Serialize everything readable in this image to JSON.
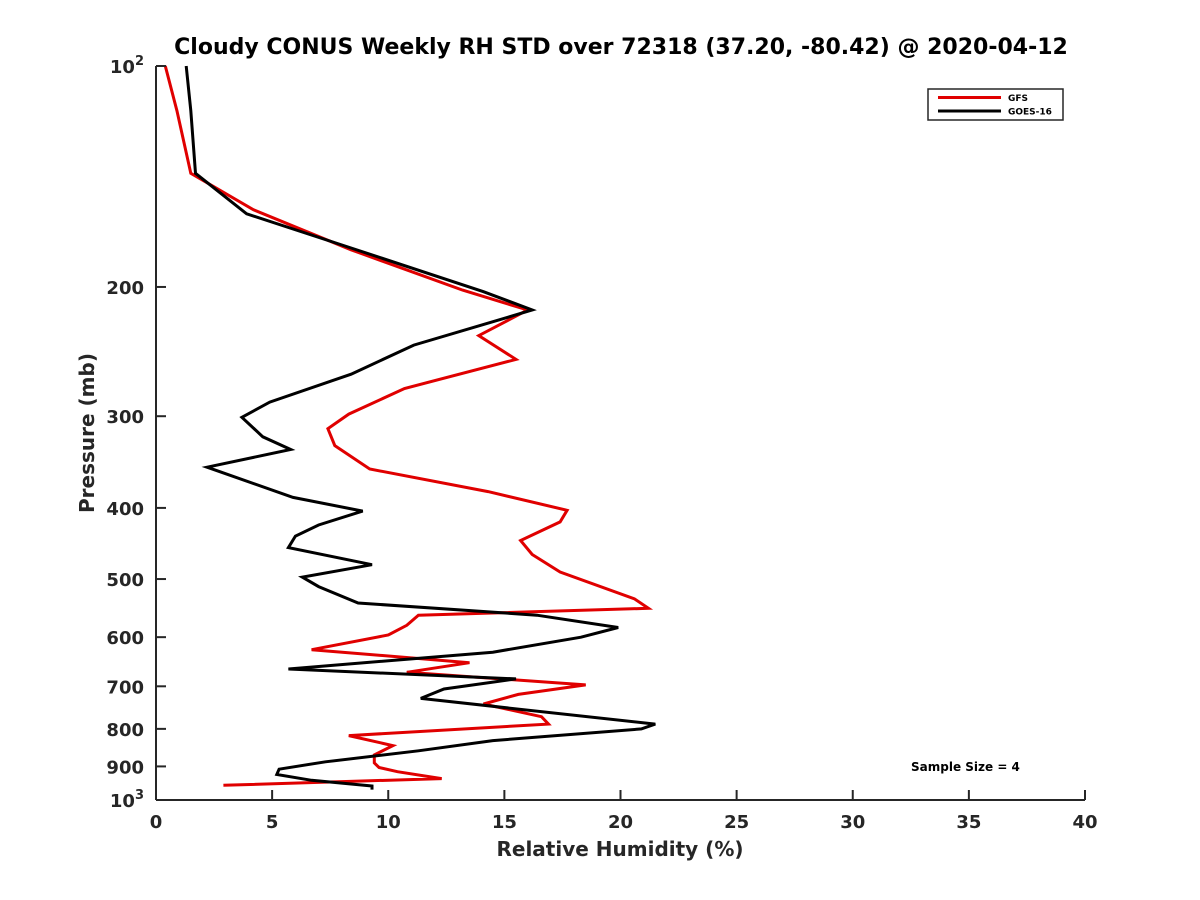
{
  "chart_data": {
    "type": "line",
    "title": "Cloudy CONUS Weekly RH STD over 72318 (37.20, -80.42) @ 2020-04-12",
    "xlabel": "Relative Humidity (%)",
    "ylabel": "Pressure (mb)",
    "xlim": [
      0,
      40
    ],
    "ylim": [
      100,
      1000
    ],
    "yscale": "log",
    "yreversed": true,
    "grid": false,
    "legend_position": "top-right",
    "x_ticks": [
      0,
      5,
      10,
      15,
      20,
      25,
      30,
      35,
      40
    ],
    "x_tick_labels": [
      "0",
      "5",
      "10",
      "15",
      "20",
      "25",
      "30",
      "35",
      "40"
    ],
    "y_ticks": [
      100,
      200,
      300,
      400,
      500,
      600,
      700,
      800,
      900,
      1000
    ],
    "y_tick_labels": [
      {
        "base": "10",
        "exp": "2"
      },
      {
        "text": "200"
      },
      {
        "text": "300"
      },
      {
        "text": "400"
      },
      {
        "text": "500"
      },
      {
        "text": "600"
      },
      {
        "text": "700"
      },
      {
        "text": "800"
      },
      {
        "text": "900"
      },
      {
        "base": "10",
        "exp": "3"
      }
    ],
    "annotation": "Sample Size = 4",
    "series": [
      {
        "name": "GFS",
        "color": "#e00000",
        "points": [
          [
            0.4,
            100
          ],
          [
            0.9,
            115
          ],
          [
            1.5,
            140
          ],
          [
            4.2,
            157
          ],
          [
            8.4,
            178
          ],
          [
            13.2,
            202
          ],
          [
            16.0,
            215
          ],
          [
            13.9,
            233
          ],
          [
            15.5,
            251
          ],
          [
            10.7,
            275
          ],
          [
            8.3,
            298
          ],
          [
            7.4,
            312
          ],
          [
            7.7,
            329
          ],
          [
            9.2,
            354
          ],
          [
            14.3,
            380
          ],
          [
            17.7,
            403
          ],
          [
            17.4,
            418
          ],
          [
            15.7,
            443
          ],
          [
            16.2,
            463
          ],
          [
            17.4,
            489
          ],
          [
            20.6,
            532
          ],
          [
            21.2,
            548
          ],
          [
            11.3,
            560
          ],
          [
            10.8,
            578
          ],
          [
            10.0,
            596
          ],
          [
            6.7,
            624
          ],
          [
            13.5,
            650
          ],
          [
            10.8,
            670
          ],
          [
            18.5,
            697
          ],
          [
            15.6,
            718
          ],
          [
            14.1,
            740
          ],
          [
            16.6,
            770
          ],
          [
            16.9,
            788
          ],
          [
            8.3,
            817
          ],
          [
            10.2,
            843
          ],
          [
            9.4,
            868
          ],
          [
            9.4,
            890
          ],
          [
            9.6,
            903
          ],
          [
            10.4,
            915
          ],
          [
            12.3,
            935
          ],
          [
            2.9,
            955
          ]
        ]
      },
      {
        "name": "GOES-16",
        "color": "#000000",
        "points": [
          [
            1.3,
            100
          ],
          [
            1.5,
            115
          ],
          [
            1.7,
            140
          ],
          [
            3.9,
            159
          ],
          [
            8.4,
            177
          ],
          [
            14.1,
            203
          ],
          [
            16.2,
            215
          ],
          [
            11.1,
            240
          ],
          [
            8.4,
            263
          ],
          [
            4.9,
            287
          ],
          [
            3.7,
            301
          ],
          [
            4.6,
            320
          ],
          [
            5.8,
            333
          ],
          [
            2.2,
            352
          ],
          [
            5.9,
            387
          ],
          [
            8.9,
            404
          ],
          [
            7.0,
            422
          ],
          [
            6.0,
            437
          ],
          [
            5.7,
            453
          ],
          [
            9.3,
            478
          ],
          [
            6.3,
            497
          ],
          [
            7.0,
            512
          ],
          [
            8.7,
            539
          ],
          [
            16.4,
            560
          ],
          [
            19.9,
            582
          ],
          [
            18.3,
            600
          ],
          [
            14.5,
            629
          ],
          [
            5.7,
            663
          ],
          [
            15.5,
            684
          ],
          [
            12.4,
            706
          ],
          [
            11.4,
            727
          ],
          [
            21.5,
            788
          ],
          [
            20.9,
            800
          ],
          [
            14.5,
            830
          ],
          [
            11.3,
            857
          ],
          [
            7.3,
            887
          ],
          [
            5.3,
            908
          ],
          [
            5.2,
            923
          ],
          [
            6.7,
            940
          ],
          [
            9.3,
            957
          ],
          [
            9.3,
            968
          ]
        ]
      }
    ]
  }
}
